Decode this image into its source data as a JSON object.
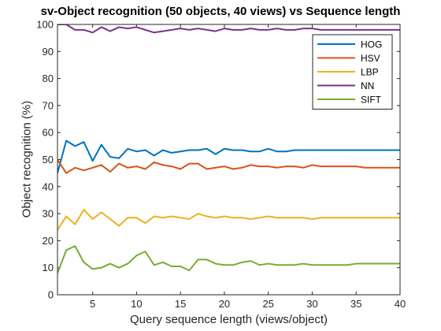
{
  "chart_data": {
    "type": "line",
    "title": "sv-Object recognition (50 objects, 40 views) vs Sequence length",
    "xlabel": "Query sequence length (views/object)",
    "ylabel": "Object recognition (%)",
    "xlim": [
      1,
      40
    ],
    "ylim": [
      0,
      100
    ],
    "xticks": [
      5,
      10,
      15,
      20,
      25,
      30,
      35,
      40
    ],
    "yticks": [
      0,
      10,
      20,
      30,
      40,
      50,
      60,
      70,
      80,
      90,
      100
    ],
    "grid": false,
    "legend_position": "top-right",
    "x": [
      1,
      2,
      3,
      4,
      5,
      6,
      7,
      8,
      9,
      10,
      11,
      12,
      13,
      14,
      15,
      16,
      17,
      18,
      19,
      20,
      21,
      22,
      23,
      24,
      25,
      26,
      27,
      28,
      29,
      30,
      31,
      32,
      33,
      34,
      35,
      36,
      37,
      38,
      39,
      40
    ],
    "series": [
      {
        "name": "HOG",
        "color": "#0072BD",
        "values": [
          45,
          57,
          55,
          56.5,
          49.5,
          55.5,
          51,
          50.5,
          54,
          53,
          53.5,
          51.5,
          53.5,
          52.5,
          53,
          53.5,
          53.5,
          54,
          52,
          54,
          53.5,
          53.5,
          53,
          53,
          54,
          53,
          53,
          53.5,
          53.5,
          53.5,
          53.5,
          53.5,
          53.5,
          53.5,
          53.5,
          53.5,
          53.5,
          53.5,
          53.5,
          53.5
        ]
      },
      {
        "name": "HSV",
        "color": "#D95319",
        "values": [
          50,
          45,
          47,
          46,
          47,
          48,
          45.5,
          48.5,
          47,
          47.5,
          46.5,
          49,
          48,
          47.5,
          46.5,
          48.5,
          48.5,
          46.5,
          47,
          47.5,
          46.5,
          47,
          48,
          47.5,
          47.5,
          47,
          47.5,
          47.5,
          47,
          48,
          47.5,
          47.5,
          47.5,
          47.5,
          47.5,
          47,
          47,
          47,
          47,
          47
        ]
      },
      {
        "name": "LBP",
        "color": "#EDB120",
        "values": [
          24,
          29,
          26,
          31.5,
          28,
          30.5,
          28,
          25.5,
          28.5,
          28.5,
          26.5,
          29,
          28.5,
          29,
          28.5,
          28,
          30,
          29,
          28.5,
          29,
          28.5,
          28.5,
          28,
          28.5,
          29,
          28.5,
          28.5,
          28.5,
          28.5,
          28,
          28.5,
          28.5,
          28.5,
          28.5,
          28.5,
          28.5,
          28.5,
          28.5,
          28.5,
          28.5
        ]
      },
      {
        "name": "NN",
        "color": "#7E2F8E",
        "values": [
          100,
          100,
          98,
          98,
          97,
          99,
          97.5,
          99,
          98.5,
          99,
          98,
          97,
          97.5,
          98,
          98.5,
          98,
          98.5,
          98,
          97.5,
          98.5,
          98,
          98,
          98.5,
          98,
          98,
          98.5,
          98,
          98,
          98.5,
          98.5,
          98,
          98,
          98,
          98,
          98,
          98,
          98,
          98,
          98,
          98
        ]
      },
      {
        "name": "SIFT",
        "color": "#77AC30",
        "values": [
          8,
          16.5,
          18,
          12,
          9.5,
          10,
          11.5,
          10,
          11.5,
          14.5,
          16,
          11,
          12,
          10.5,
          10.5,
          9,
          13,
          13,
          11.5,
          11,
          11,
          12,
          12.5,
          11,
          11.5,
          11,
          11,
          11,
          11.5,
          11,
          11,
          11,
          11,
          11,
          11.5,
          11.5,
          11.5,
          11.5,
          11.5,
          11.5
        ]
      }
    ]
  }
}
